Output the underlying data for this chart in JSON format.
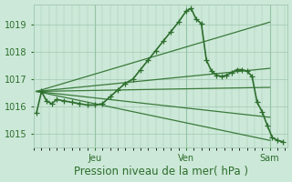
{
  "bg_color": "#cce8d8",
  "plot_bg_color": "#cce8d8",
  "grid_color": "#a0c8b0",
  "line_color_dark": "#2d6e2d",
  "ylim": [
    1014.5,
    1019.75
  ],
  "yticks": [
    1015,
    1016,
    1017,
    1018,
    1019
  ],
  "xlabel": "Pression niveau de la mer( hPa )",
  "xlabel_fontsize": 8.5,
  "tick_fontsize": 7,
  "xtick_labels": [
    "Jeu",
    "Ven",
    "Sam"
  ],
  "xtick_positions": [
    24,
    60,
    93
  ],
  "xlim": [
    0,
    100
  ],
  "vline_positions": [
    24,
    60,
    93
  ],
  "vline_color": "#80b890",
  "main_series": {
    "x": [
      1,
      3,
      5,
      7,
      9,
      12,
      15,
      18,
      21,
      24,
      27,
      30,
      33,
      36,
      39,
      42,
      45,
      48,
      51,
      54,
      57,
      60,
      62,
      64,
      66,
      68,
      70,
      72,
      74,
      76,
      78,
      80,
      82,
      84,
      86,
      88,
      90,
      92,
      94,
      96,
      98
    ],
    "y": [
      1015.75,
      1016.55,
      1016.2,
      1016.1,
      1016.25,
      1016.2,
      1016.15,
      1016.1,
      1016.05,
      1016.05,
      1016.1,
      1016.35,
      1016.6,
      1016.85,
      1017.0,
      1017.35,
      1017.7,
      1018.05,
      1018.4,
      1018.75,
      1019.1,
      1019.5,
      1019.6,
      1019.2,
      1019.05,
      1017.7,
      1017.3,
      1017.15,
      1017.1,
      1017.15,
      1017.25,
      1017.35,
      1017.35,
      1017.3,
      1017.1,
      1016.15,
      1015.8,
      1015.3,
      1014.85,
      1014.75,
      1014.7
    ],
    "color": "#2d6e2d",
    "lw": 1.2,
    "marker": "+",
    "ms": 4
  },
  "trend_lines": [
    {
      "x": [
        1,
        93
      ],
      "y": [
        1016.55,
        1017.4
      ],
      "color": "#3a7a3a",
      "lw": 0.9
    },
    {
      "x": [
        1,
        93
      ],
      "y": [
        1016.55,
        1019.1
      ],
      "color": "#3a7a3a",
      "lw": 0.9
    },
    {
      "x": [
        1,
        93
      ],
      "y": [
        1016.55,
        1016.7
      ],
      "color": "#3a7a3a",
      "lw": 0.9
    },
    {
      "x": [
        1,
        93
      ],
      "y": [
        1016.55,
        1015.6
      ],
      "color": "#3a7a3a",
      "lw": 0.9
    },
    {
      "x": [
        1,
        93
      ],
      "y": [
        1016.55,
        1014.75
      ],
      "color": "#3a7a3a",
      "lw": 0.9
    }
  ]
}
